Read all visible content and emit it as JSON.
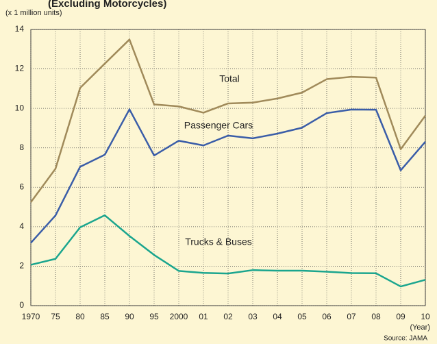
{
  "chart_data": {
    "type": "line",
    "title": "(Excluding Motorcycles)",
    "y_label": "(x 1 million units)",
    "x_label": "(Year)",
    "source": "Source: JAMA",
    "categories": [
      "1970",
      "75",
      "80",
      "85",
      "90",
      "95",
      "2000",
      "01",
      "02",
      "03",
      "04",
      "05",
      "06",
      "07",
      "08",
      "09",
      "10"
    ],
    "series": [
      {
        "name": "Total",
        "color": "#a08a5a",
        "values": [
          5.24,
          6.94,
          11.04,
          12.27,
          13.49,
          10.2,
          10.1,
          9.78,
          10.25,
          10.29,
          10.5,
          10.8,
          11.48,
          11.6,
          11.56,
          7.93,
          9.63
        ]
      },
      {
        "name": "Passenger Cars",
        "color": "#3a5da8",
        "values": [
          3.18,
          4.57,
          7.04,
          7.65,
          9.95,
          7.61,
          8.36,
          8.12,
          8.62,
          8.48,
          8.72,
          9.02,
          9.76,
          9.94,
          9.93,
          6.86,
          8.31
        ]
      },
      {
        "name": "Trucks & Buses",
        "color": "#1aa58e",
        "values": [
          2.07,
          2.37,
          3.97,
          4.58,
          3.53,
          2.57,
          1.76,
          1.66,
          1.63,
          1.8,
          1.77,
          1.77,
          1.72,
          1.65,
          1.64,
          0.97,
          1.31
        ]
      }
    ],
    "ylim": [
      0,
      14
    ],
    "yticks": [
      0,
      2,
      4,
      6,
      8,
      10,
      12,
      14
    ],
    "grid": true
  }
}
